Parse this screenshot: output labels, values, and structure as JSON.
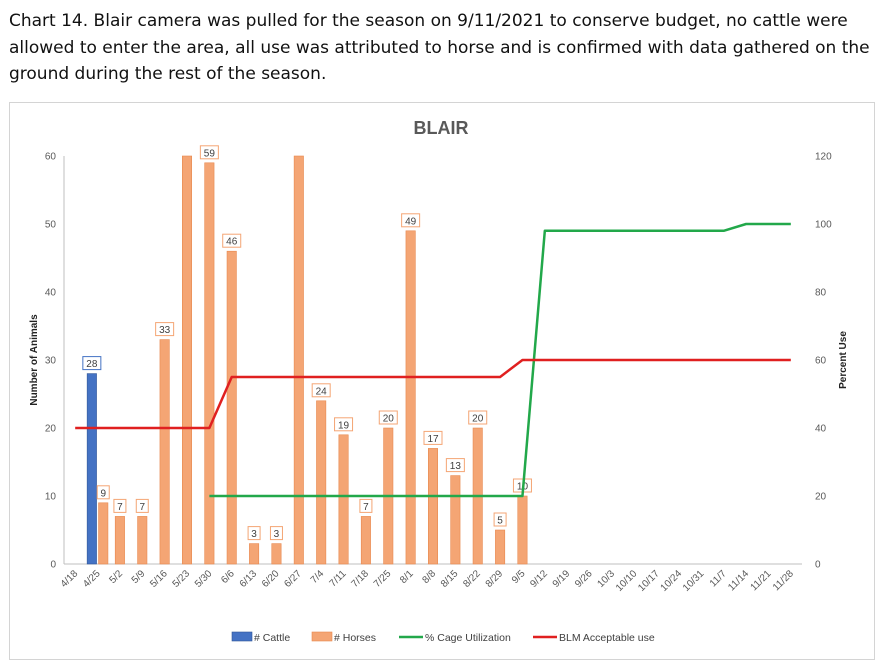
{
  "caption": "Chart 14. Blair camera was pulled for the season on 9/11/2021 to conserve budget, no cattle were allowed to enter the area, all use was attributed to horse and is confirmed with data gathered on the ground during the rest of the season.",
  "chart_data": {
    "type": "bar",
    "title": "BLAIR",
    "ylabel": "Number of Animals",
    "y2label": "Percent Use",
    "ylim": [
      0,
      60
    ],
    "y2lim": [
      0,
      120
    ],
    "yticks": [
      0,
      10,
      20,
      30,
      40,
      50,
      60
    ],
    "y2ticks": [
      0,
      20,
      40,
      60,
      80,
      100,
      120
    ],
    "grid": false,
    "legend_position": "bottom",
    "categories": [
      "4/18",
      "4/25",
      "5/2",
      "5/9",
      "5/16",
      "5/23",
      "5/30",
      "6/6",
      "6/13",
      "6/20",
      "6/27",
      "7/4",
      "7/11",
      "7/18",
      "7/25",
      "8/1",
      "8/8",
      "8/15",
      "8/22",
      "8/29",
      "9/5",
      "9/12",
      "9/19",
      "9/26",
      "10/3",
      "10/10",
      "10/17",
      "10/24",
      "10/31",
      "11/7",
      "11/14",
      "11/21",
      "11/28"
    ],
    "series": [
      {
        "name": "# Cattle",
        "type": "bar",
        "axis": "left",
        "color": "#4472c4",
        "values": [
          null,
          28,
          null,
          null,
          null,
          null,
          null,
          null,
          null,
          null,
          null,
          null,
          null,
          null,
          null,
          null,
          null,
          null,
          null,
          null,
          null,
          null,
          null,
          null,
          null,
          null,
          null,
          null,
          null,
          null,
          null,
          null,
          null
        ],
        "labels": [
          null,
          "28",
          null,
          null,
          null,
          null,
          null,
          null,
          null,
          null,
          null,
          null,
          null,
          null,
          null,
          null,
          null,
          null,
          null,
          null,
          null,
          null,
          null,
          null,
          null,
          null,
          null,
          null,
          null,
          null,
          null,
          null,
          null
        ]
      },
      {
        "name": "# Horses",
        "type": "bar",
        "axis": "left",
        "color": "#f4a574",
        "values": [
          null,
          9,
          7,
          7,
          33,
          60,
          59,
          46,
          3,
          3,
          60,
          24,
          19,
          7,
          20,
          49,
          17,
          13,
          20,
          5,
          10,
          0,
          0,
          0,
          0,
          0,
          0,
          0,
          0,
          0,
          0,
          0,
          0
        ],
        "labels": [
          null,
          "9",
          "7",
          "7",
          "33",
          null,
          "59",
          "46",
          "3",
          "3",
          null,
          "24",
          "19",
          "7",
          "20",
          "49",
          "17",
          "13",
          "20",
          "5",
          "10",
          null,
          null,
          null,
          null,
          null,
          null,
          null,
          null,
          null,
          null,
          null,
          null
        ]
      },
      {
        "name": "% Cage Utilization",
        "type": "line",
        "axis": "right",
        "color": "#22a84a",
        "values": [
          null,
          null,
          null,
          null,
          null,
          null,
          20,
          20,
          20,
          20,
          20,
          20,
          20,
          20,
          20,
          20,
          20,
          20,
          20,
          20,
          20,
          98,
          98,
          98,
          98,
          98,
          98,
          98,
          98,
          98,
          100,
          100,
          100
        ]
      },
      {
        "name": "BLM Acceptable use",
        "type": "line",
        "axis": "right",
        "color": "#e02020",
        "values": [
          40,
          40,
          40,
          40,
          40,
          40,
          40,
          55,
          55,
          55,
          55,
          55,
          55,
          55,
          55,
          55,
          55,
          55,
          55,
          55,
          60,
          60,
          60,
          60,
          60,
          60,
          60,
          60,
          60,
          60,
          60,
          60,
          60
        ]
      }
    ]
  }
}
